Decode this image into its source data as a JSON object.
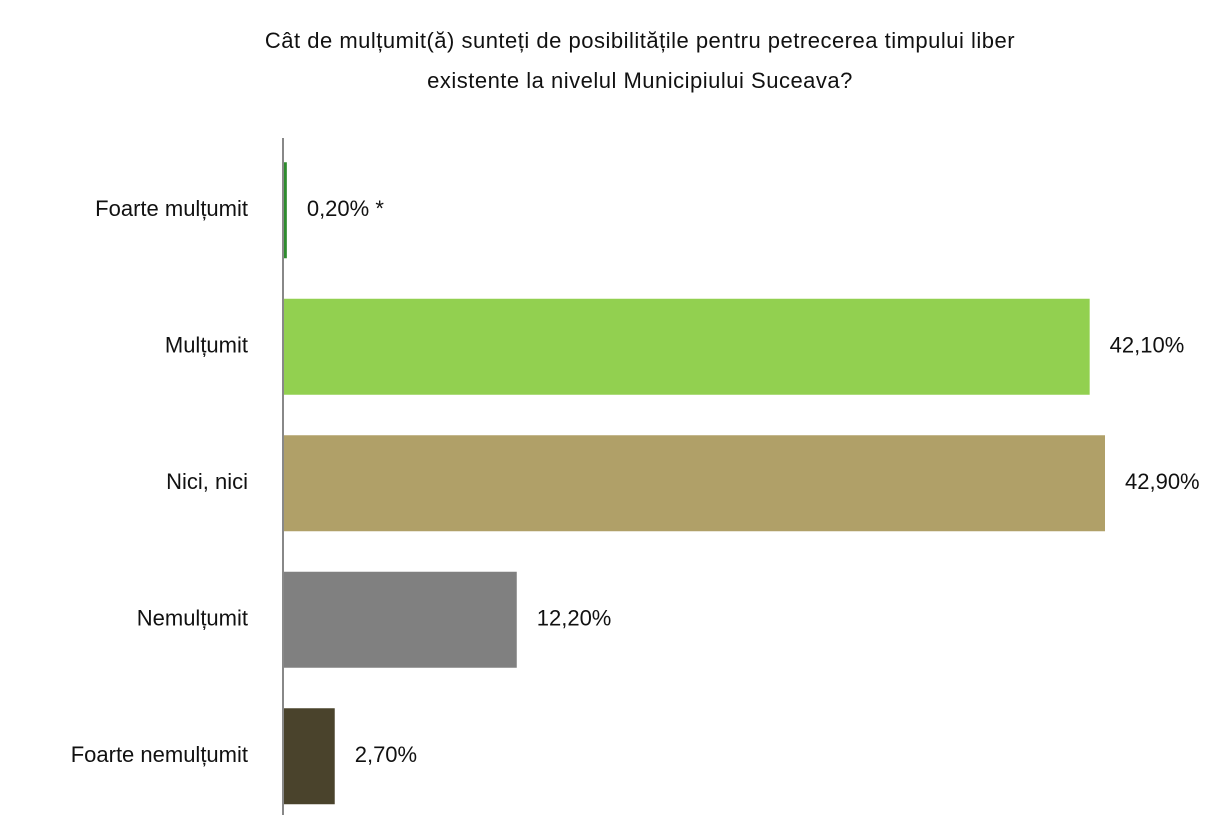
{
  "chart_data": {
    "type": "hbar",
    "title": [
      "Cât de mulțumit(ă) sunteți de posibilitățile pentru petrecerea timpului liber",
      "existente la nivelul Municipiului Suceava?"
    ],
    "categories": [
      "Foarte mulțumit",
      "Mulțumit",
      "Nici, nici",
      "Nemulțumit",
      "Foarte nemulțumit"
    ],
    "values": [
      0.2,
      42.1,
      42.9,
      12.2,
      2.7
    ],
    "value_labels": [
      "0,20% *",
      "42,10%",
      "42,90%",
      "12,20%",
      "2,70%"
    ],
    "colors": [
      "#2e8b2e",
      "#92d050",
      "#b0a068",
      "#808080",
      "#4a432c"
    ]
  }
}
